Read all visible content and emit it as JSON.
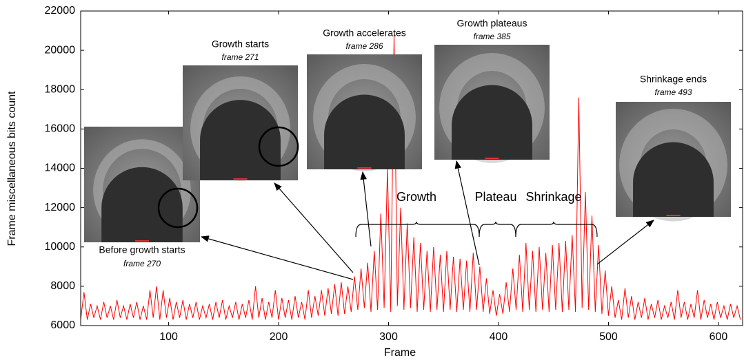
{
  "chart_data": {
    "type": "line",
    "xlabel": "Frame",
    "ylabel": "Frame miscellaneous bits count",
    "color": "#ff0000",
    "xlim": [
      20,
      622
    ],
    "xticks": [
      100,
      200,
      300,
      400,
      500,
      600
    ],
    "ylim": [
      6000,
      22000
    ],
    "yticks": [
      6000,
      8000,
      10000,
      12000,
      14000,
      16000,
      18000,
      20000,
      22000
    ],
    "x": [
      20,
      23,
      26,
      29,
      32,
      35,
      38,
      41,
      44,
      47,
      50,
      53,
      56,
      59,
      62,
      65,
      68,
      71,
      74,
      77,
      80,
      83,
      86,
      89,
      92,
      95,
      98,
      101,
      104,
      107,
      110,
      113,
      116,
      119,
      122,
      125,
      128,
      131,
      134,
      137,
      140,
      143,
      146,
      149,
      152,
      155,
      158,
      161,
      164,
      167,
      170,
      173,
      176,
      179,
      182,
      185,
      188,
      191,
      194,
      197,
      200,
      203,
      206,
      209,
      212,
      215,
      218,
      221,
      224,
      227,
      230,
      233,
      236,
      239,
      242,
      245,
      248,
      251,
      254,
      257,
      260,
      263,
      266,
      269,
      272,
      275,
      278,
      281,
      284,
      287,
      290,
      293,
      296,
      299,
      302,
      305,
      308,
      311,
      314,
      317,
      320,
      323,
      326,
      329,
      332,
      335,
      338,
      341,
      344,
      347,
      350,
      353,
      356,
      359,
      362,
      365,
      368,
      371,
      374,
      377,
      380,
      383,
      386,
      389,
      392,
      395,
      398,
      401,
      404,
      407,
      410,
      413,
      416,
      419,
      422,
      425,
      428,
      431,
      434,
      437,
      440,
      443,
      446,
      449,
      452,
      455,
      458,
      461,
      464,
      467,
      470,
      473,
      476,
      479,
      482,
      485,
      488,
      491,
      494,
      497,
      500,
      503,
      506,
      509,
      512,
      515,
      518,
      521,
      524,
      527,
      530,
      533,
      536,
      539,
      542,
      545,
      548,
      551,
      554,
      557,
      560,
      563,
      566,
      569,
      572,
      575,
      578,
      581,
      584,
      587,
      590,
      593,
      596,
      599,
      602,
      605,
      608,
      611,
      614,
      617,
      620
    ],
    "values": [
      6300,
      7700,
      6300,
      7100,
      6400,
      7000,
      6300,
      7200,
      6400,
      7000,
      6300,
      7300,
      6400,
      7000,
      6300,
      7100,
      6400,
      7200,
      6300,
      7000,
      6300,
      7800,
      6400,
      8000,
      6300,
      7800,
      6400,
      7400,
      6300,
      7200,
      6400,
      7300,
      6300,
      7100,
      6400,
      7200,
      6300,
      7000,
      6400,
      7100,
      6300,
      7200,
      6400,
      7300,
      6300,
      7000,
      6400,
      7200,
      6300,
      7100,
      6400,
      7300,
      6300,
      8000,
      6400,
      7400,
      6300,
      7200,
      6400,
      7800,
      6300,
      7400,
      6400,
      7300,
      6300,
      7500,
      6400,
      7200,
      6300,
      7800,
      6400,
      7500,
      6500,
      7800,
      6500,
      7900,
      6600,
      8100,
      6500,
      8200,
      6600,
      8000,
      6700,
      8500,
      6800,
      8900,
      6900,
      9200,
      6700,
      9800,
      6800,
      11700,
      6900,
      14000,
      6700,
      20800,
      7000,
      12000,
      6800,
      11200,
      6900,
      10500,
      6700,
      10200,
      6800,
      9800,
      6700,
      10000,
      6800,
      9600,
      6700,
      9800,
      6800,
      9500,
      6700,
      9400,
      6800,
      9300,
      6700,
      9700,
      6800,
      9000,
      6700,
      8400,
      6600,
      7800,
      6500,
      7600,
      6600,
      8200,
      6700,
      8900,
      6800,
      9600,
      6700,
      10200,
      6800,
      9800,
      6700,
      10000,
      6800,
      9700,
      6700,
      10100,
      6800,
      10200,
      6700,
      10300,
      6800,
      10600,
      6700,
      17600,
      6900,
      12800,
      6800,
      11600,
      6700,
      10100,
      6600,
      8800,
      6500,
      8000,
      6400,
      7300,
      6300,
      7900,
      6400,
      7500,
      6300,
      7200,
      6400,
      7400,
      6300,
      7100,
      6400,
      7300,
      6300,
      7000,
      6400,
      7200,
      6300,
      7800,
      6400,
      7200,
      6300,
      7100,
      6400,
      7800,
      6300,
      7300,
      6400,
      7100,
      6300,
      7200,
      6400,
      7000,
      6300,
      7100,
      6400,
      7000,
      6300
    ],
    "annotations": [
      {
        "title": "Before growth starts",
        "frame": "frame 270"
      },
      {
        "title": "Growth starts",
        "frame": "frame 271"
      },
      {
        "title": "Growth accelerates",
        "frame": "frame 286"
      },
      {
        "title": "Growth plateaus",
        "frame": "frame 385"
      },
      {
        "title": "Shrinkage ends",
        "frame": "frame 493"
      }
    ],
    "phases": [
      "Growth",
      "Plateau",
      "Shrinkage"
    ]
  }
}
